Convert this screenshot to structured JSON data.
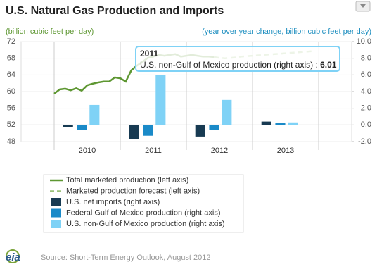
{
  "chart_data": {
    "type": "combo",
    "title": "U.S. Natural Gas Production and Imports",
    "y_label": "(billion cubic feet per day)",
    "y2_label": "(year over year change, billion cubic feet per day)",
    "xlim": [
      2009.5,
      2014.5
    ],
    "xticks": [
      {
        "value": 2010.5,
        "label": "2010"
      },
      {
        "value": 2011.5,
        "label": "2011"
      },
      {
        "value": 2012.5,
        "label": "2012"
      },
      {
        "value": 2013.5,
        "label": "2013"
      }
    ],
    "ylim": [
      48,
      72
    ],
    "yticks": [
      48,
      52,
      56,
      60,
      64,
      68,
      72
    ],
    "y2lim": [
      -2,
      10
    ],
    "y2ticks": [
      {
        "value": -2,
        "label": "-2.0"
      },
      {
        "value": 0,
        "label": "0.0"
      },
      {
        "value": 2,
        "label": "2.0"
      },
      {
        "value": 4,
        "label": "4.0"
      },
      {
        "value": 6,
        "label": "6.0"
      },
      {
        "value": 8,
        "label": "8.0"
      },
      {
        "value": 10,
        "label": "10.0"
      }
    ],
    "grid": true,
    "series": [
      {
        "name": "Total marketed production (left axis)",
        "kind": "line",
        "color": "#5e9732",
        "x": [
          2010,
          2010.083,
          2010.167,
          2010.25,
          2010.333,
          2010.417,
          2010.5,
          2010.583,
          2010.667,
          2010.75,
          2010.833,
          2010.917,
          2011,
          2011.083,
          2011.167,
          2011.25,
          2011.333,
          2011.417,
          2011.5,
          2011.583,
          2011.667,
          2011.75,
          2011.833,
          2011.917,
          2012,
          2012.083,
          2012.167,
          2012.25,
          2012.333,
          2012.417
        ],
        "values": [
          59.5,
          60.5,
          60.7,
          60.3,
          60.8,
          60.2,
          61.5,
          61.9,
          62.2,
          62.4,
          62.4,
          63.4,
          63.2,
          62.4,
          65.1,
          66.2,
          67.1,
          68.1,
          68.4,
          68.8,
          68.6,
          68.8,
          69.0,
          68.4,
          68.6,
          68.8,
          68.6,
          68.4,
          68.4,
          68.3
        ]
      },
      {
        "name": "Marketed production forecast (left axis)",
        "kind": "dashed",
        "color": "#9bc27a",
        "x": [
          2012.417,
          2012.5,
          2012.583,
          2012.667,
          2012.75,
          2012.833,
          2012.917,
          2013,
          2013.083,
          2013.167,
          2013.25,
          2013.333,
          2013.417,
          2013.5,
          2013.583,
          2013.667,
          2013.75,
          2013.833,
          2013.917
        ],
        "values": [
          68.3,
          68.1,
          68.0,
          68.1,
          68.2,
          68.4,
          68.5,
          68.6,
          68.7,
          68.8,
          68.9,
          69.0,
          69.1,
          69.2,
          69.3,
          69.4,
          69.5,
          69.6,
          69.7
        ]
      },
      {
        "name": "U.S. net imports (right axis)",
        "kind": "bar",
        "axis": "y2",
        "color": "#173a52",
        "values": [
          -0.3,
          -1.7,
          -1.4,
          0.4
        ]
      },
      {
        "name": "Federal Gulf of Mexico production (right axis)",
        "kind": "bar",
        "axis": "y2",
        "color": "#1a8ac8",
        "values": [
          -0.6,
          -1.3,
          -0.6,
          0.2
        ]
      },
      {
        "name": "U.S. non-Gulf of Mexico production (right axis)",
        "kind": "bar",
        "axis": "y2",
        "color": "#7fd2f6",
        "values": [
          2.4,
          6.01,
          3.0,
          0.3
        ]
      }
    ],
    "source": "Source: Short-Term Energy Outlook, August 2012",
    "logo": "eia"
  }
}
